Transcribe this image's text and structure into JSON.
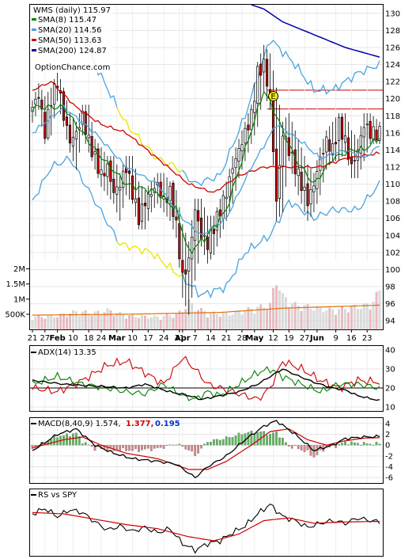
{
  "legend": {
    "title": "WMS (daily) 115.97",
    "items": [
      {
        "label": "SMA(8) 115.47",
        "color": "#008000"
      },
      {
        "label": "SMA(20) 114.56",
        "color": "#4aa3df"
      },
      {
        "label": "SMA(50) 113.63",
        "color": "#cc0000"
      },
      {
        "label": "SMA(200) 124.87",
        "color": "#0000aa"
      }
    ],
    "brand": "OptionChance.com"
  },
  "colors": {
    "up": "#ffffff",
    "down": "#cc0000",
    "wick": "#000000",
    "bb": "#4aa3df",
    "bb_yellow": "#e6e600",
    "vol": "#f2b5be",
    "vol_up": "#dddddd",
    "vol_avg": "#e07000",
    "adx": "#000000",
    "di_plus": "#008000",
    "di_minus": "#cc0000",
    "macd": "#000000",
    "signal": "#cc0000",
    "hist_up": "#5cb85c",
    "hist_down": "#d98888",
    "rs": "#000000",
    "rs_ma": "#cc0000"
  },
  "x_labels": [
    {
      "text": "21",
      "i": 0,
      "bold": false
    },
    {
      "text": "27",
      "i": 4,
      "bold": false
    },
    {
      "text": "Feb",
      "i": 8,
      "bold": true
    },
    {
      "text": "10",
      "i": 13,
      "bold": false
    },
    {
      "text": "18",
      "i": 18,
      "bold": false
    },
    {
      "text": "24",
      "i": 22,
      "bold": false
    },
    {
      "text": "Mar",
      "i": 27,
      "bold": true
    },
    {
      "text": "10",
      "i": 32,
      "bold": false
    },
    {
      "text": "17",
      "i": 37,
      "bold": false
    },
    {
      "text": "24",
      "i": 42,
      "bold": false
    },
    {
      "text": "31",
      "i": 47,
      "bold": false
    },
    {
      "text": "Apr",
      "i": 48,
      "bold": true
    },
    {
      "text": "7",
      "i": 52,
      "bold": false
    },
    {
      "text": "14",
      "i": 57,
      "bold": false
    },
    {
      "text": "21",
      "i": 62,
      "bold": false
    },
    {
      "text": "28",
      "i": 67,
      "bold": false
    },
    {
      "text": "May",
      "i": 71,
      "bold": true
    },
    {
      "text": "12",
      "i": 77,
      "bold": false
    },
    {
      "text": "19",
      "i": 82,
      "bold": false
    },
    {
      "text": "27",
      "i": 87,
      "bold": false
    },
    {
      "text": "Jun",
      "i": 91,
      "bold": true
    },
    {
      "text": "9",
      "i": 97,
      "bold": false
    },
    {
      "text": "16",
      "i": 102,
      "bold": false
    },
    {
      "text": "23",
      "i": 107,
      "bold": false
    }
  ],
  "panels": {
    "price": {
      "ticks": [
        94,
        96,
        98,
        100,
        102,
        104,
        106,
        108,
        110,
        112,
        114,
        116,
        118,
        120,
        122,
        124,
        126,
        128,
        130
      ],
      "ylim": [
        93,
        131
      ],
      "earnings_marker": "E"
    },
    "volume": {
      "ticks": [
        "2M",
        "1.5M",
        "1M",
        "500K"
      ],
      "tick_values": [
        2000000,
        1500000,
        1000000,
        500000
      ],
      "ylim": [
        0,
        2250000
      ]
    },
    "adx": {
      "title": "ADX(14) 13.35",
      "ticks": [
        40,
        30,
        20,
        10
      ],
      "ylim": [
        8,
        42
      ],
      "ref": 20
    },
    "macd": {
      "title": "MACD(8,40,9) 1.574,",
      "v1": "1.377,",
      "v2": "0.195",
      "ticks": [
        4,
        2,
        0,
        -2,
        -4,
        -6
      ],
      "ylim": [
        -7,
        5
      ],
      "v1_color": "#cc0000",
      "v2_color": "#0033cc"
    },
    "rs": {
      "title": "RS vs SPY"
    }
  },
  "chart_data": {
    "type": "candlestick",
    "title": "WMS (daily) 115.97",
    "n_sessions": 112,
    "ohlc_anchors": [
      [
        0,
        118,
        119.5,
        117.5,
        119
      ],
      [
        2,
        120,
        121.5,
        119,
        120.5
      ],
      [
        4,
        119,
        120,
        115,
        116
      ],
      [
        6,
        117,
        121,
        116,
        120
      ],
      [
        8,
        121,
        123,
        120,
        122
      ],
      [
        10,
        120,
        121,
        117,
        118
      ],
      [
        12,
        117,
        118,
        114,
        115
      ],
      [
        14,
        114,
        117,
        112,
        116
      ],
      [
        16,
        117,
        119,
        116,
        118
      ],
      [
        18,
        118,
        119,
        114,
        115
      ],
      [
        20,
        114,
        115,
        112,
        113
      ],
      [
        22,
        113,
        114,
        110,
        111
      ],
      [
        24,
        111,
        113,
        109,
        112
      ],
      [
        26,
        112,
        113,
        108,
        109
      ],
      [
        28,
        109,
        111,
        106,
        110
      ],
      [
        30,
        110,
        113,
        109,
        112
      ],
      [
        32,
        112,
        113,
        108,
        109
      ],
      [
        34,
        109,
        110,
        105,
        106
      ],
      [
        36,
        106,
        109,
        105,
        108
      ],
      [
        38,
        108,
        110,
        107,
        109
      ],
      [
        40,
        109,
        111,
        108,
        110
      ],
      [
        42,
        110,
        111,
        107,
        108
      ],
      [
        44,
        108,
        110,
        106,
        109
      ],
      [
        46,
        108,
        109,
        104,
        105
      ],
      [
        48,
        104,
        105,
        97,
        99
      ],
      [
        50,
        99,
        103,
        95,
        101
      ],
      [
        52,
        101,
        108,
        99,
        107
      ],
      [
        54,
        106,
        108,
        103,
        104
      ],
      [
        56,
        104,
        106,
        101,
        103
      ],
      [
        58,
        103,
        106,
        102,
        105
      ],
      [
        60,
        105,
        108,
        104,
        107
      ],
      [
        62,
        107,
        110,
        106,
        109
      ],
      [
        64,
        109,
        113,
        108,
        112
      ],
      [
        66,
        112,
        115,
        111,
        114
      ],
      [
        68,
        114,
        117,
        113,
        116
      ],
      [
        70,
        116,
        119,
        115,
        118
      ],
      [
        72,
        118,
        124,
        117,
        123
      ],
      [
        74,
        123,
        126,
        121,
        124
      ],
      [
        76,
        124,
        125,
        119,
        120
      ],
      [
        78,
        120,
        121,
        106,
        108
      ],
      [
        80,
        108,
        117,
        107,
        116
      ],
      [
        82,
        116,
        118,
        113,
        114
      ],
      [
        84,
        114,
        116,
        110,
        112
      ],
      [
        86,
        112,
        114,
        108,
        110
      ],
      [
        88,
        110,
        112,
        106,
        108
      ],
      [
        90,
        108,
        111,
        107,
        110
      ],
      [
        92,
        110,
        114,
        109,
        113
      ],
      [
        94,
        113,
        116,
        112,
        115
      ],
      [
        96,
        115,
        117,
        113,
        114
      ],
      [
        98,
        114,
        118,
        113,
        117
      ],
      [
        100,
        117,
        118,
        114,
        115
      ],
      [
        102,
        115,
        116,
        111,
        112
      ],
      [
        104,
        112,
        115,
        111,
        114
      ],
      [
        106,
        114,
        118,
        113,
        117
      ],
      [
        108,
        117,
        118,
        115,
        116
      ],
      [
        111,
        116,
        117,
        115,
        115.97
      ]
    ],
    "sma8_anchors": [
      [
        0,
        119
      ],
      [
        10,
        119
      ],
      [
        20,
        114
      ],
      [
        30,
        110
      ],
      [
        40,
        109
      ],
      [
        46,
        107
      ],
      [
        50,
        102
      ],
      [
        56,
        104
      ],
      [
        62,
        107
      ],
      [
        68,
        114
      ],
      [
        74,
        121
      ],
      [
        78,
        118
      ],
      [
        84,
        113
      ],
      [
        90,
        110
      ],
      [
        96,
        113
      ],
      [
        102,
        114
      ],
      [
        106,
        114
      ],
      [
        111,
        115.47
      ]
    ],
    "sma20_anchors": [
      [
        0,
        116
      ],
      [
        10,
        119
      ],
      [
        20,
        116
      ],
      [
        30,
        112
      ],
      [
        40,
        110
      ],
      [
        48,
        106
      ],
      [
        54,
        104
      ],
      [
        62,
        106
      ],
      [
        70,
        112
      ],
      [
        78,
        117
      ],
      [
        86,
        115
      ],
      [
        92,
        113
      ],
      [
        100,
        114
      ],
      [
        106,
        113
      ],
      [
        111,
        114.56
      ]
    ],
    "sma50_anchors": [
      [
        0,
        121
      ],
      [
        6,
        122
      ],
      [
        14,
        119
      ],
      [
        22,
        117
      ],
      [
        30,
        116
      ],
      [
        40,
        113
      ],
      [
        50,
        110
      ],
      [
        58,
        109
      ],
      [
        66,
        111
      ],
      [
        74,
        112
      ],
      [
        82,
        112
      ],
      [
        92,
        112
      ],
      [
        100,
        113
      ],
      [
        111,
        113.63
      ]
    ],
    "sma200_anchors": [
      [
        70,
        131
      ],
      [
        74,
        130.5
      ],
      [
        80,
        129
      ],
      [
        90,
        127.5
      ],
      [
        100,
        126
      ],
      [
        111,
        124.87
      ]
    ],
    "bb_upper_anchors": [
      [
        0,
        126
      ],
      [
        8,
        128
      ],
      [
        16,
        128
      ],
      [
        20,
        124
      ],
      [
        30,
        117
      ],
      [
        40,
        113
      ],
      [
        46,
        112
      ],
      [
        52,
        110
      ],
      [
        60,
        111
      ],
      [
        68,
        118
      ],
      [
        76,
        127
      ],
      [
        84,
        124
      ],
      [
        90,
        121
      ],
      [
        96,
        121
      ],
      [
        104,
        123
      ],
      [
        111,
        124
      ]
    ],
    "bb_lower_anchors": [
      [
        0,
        108
      ],
      [
        6,
        112
      ],
      [
        12,
        113
      ],
      [
        20,
        108
      ],
      [
        28,
        103
      ],
      [
        38,
        102
      ],
      [
        48,
        99
      ],
      [
        54,
        97
      ],
      [
        62,
        98
      ],
      [
        68,
        102
      ],
      [
        76,
        104
      ],
      [
        82,
        108
      ],
      [
        90,
        106
      ],
      [
        96,
        107
      ],
      [
        104,
        107
      ],
      [
        111,
        110
      ]
    ],
    "bb_yellow_ranges": [
      [
        27,
        48
      ]
    ],
    "resistance_lines": [
      121,
      118.8
    ],
    "earnings_index": 77,
    "volume_anchors": [
      [
        0,
        450000
      ],
      [
        8,
        500000
      ],
      [
        14,
        650000
      ],
      [
        20,
        600000
      ],
      [
        24,
        700000
      ],
      [
        30,
        500000
      ],
      [
        40,
        450000
      ],
      [
        46,
        550000
      ],
      [
        48,
        700000
      ],
      [
        50,
        1000000
      ],
      [
        52,
        800000
      ],
      [
        56,
        600000
      ],
      [
        62,
        550000
      ],
      [
        66,
        650000
      ],
      [
        72,
        800000
      ],
      [
        76,
        900000
      ],
      [
        78,
        1900000
      ],
      [
        80,
        1200000
      ],
      [
        84,
        900000
      ],
      [
        90,
        800000
      ],
      [
        96,
        700000
      ],
      [
        102,
        800000
      ],
      [
        108,
        900000
      ],
      [
        111,
        1400000
      ]
    ],
    "volume_avg": [
      [
        0,
        470000
      ],
      [
        30,
        500000
      ],
      [
        60,
        560000
      ],
      [
        80,
        700000
      ],
      [
        111,
        800000
      ]
    ],
    "adx_anchors": [
      [
        0,
        24
      ],
      [
        10,
        22
      ],
      [
        20,
        21
      ],
      [
        30,
        20
      ],
      [
        36,
        22
      ],
      [
        44,
        18
      ],
      [
        50,
        16
      ],
      [
        54,
        14
      ],
      [
        60,
        16
      ],
      [
        66,
        18
      ],
      [
        72,
        22
      ],
      [
        76,
        26
      ],
      [
        80,
        30
      ],
      [
        84,
        27
      ],
      [
        90,
        23
      ],
      [
        96,
        20
      ],
      [
        100,
        19
      ],
      [
        104,
        16
      ],
      [
        111,
        13.35
      ]
    ],
    "di_plus_anchors": [
      [
        0,
        22
      ],
      [
        8,
        26
      ],
      [
        16,
        22
      ],
      [
        24,
        20
      ],
      [
        30,
        18
      ],
      [
        36,
        17
      ],
      [
        42,
        22
      ],
      [
        48,
        16
      ],
      [
        52,
        14
      ],
      [
        56,
        18
      ],
      [
        60,
        16
      ],
      [
        66,
        22
      ],
      [
        72,
        28
      ],
      [
        76,
        30
      ],
      [
        80,
        26
      ],
      [
        86,
        22
      ],
      [
        92,
        18
      ],
      [
        98,
        22
      ],
      [
        104,
        22
      ],
      [
        111,
        20
      ]
    ],
    "di_minus_anchors": [
      [
        0,
        20
      ],
      [
        8,
        18
      ],
      [
        16,
        24
      ],
      [
        24,
        32
      ],
      [
        30,
        34
      ],
      [
        36,
        28
      ],
      [
        42,
        22
      ],
      [
        48,
        36
      ],
      [
        52,
        30
      ],
      [
        56,
        22
      ],
      [
        60,
        20
      ],
      [
        66,
        17
      ],
      [
        72,
        14
      ],
      [
        76,
        20
      ],
      [
        80,
        34
      ],
      [
        86,
        30
      ],
      [
        92,
        24
      ],
      [
        98,
        20
      ],
      [
        104,
        24
      ],
      [
        111,
        23
      ]
    ],
    "macd_anchors": [
      [
        0,
        -1
      ],
      [
        8,
        2
      ],
      [
        14,
        3
      ],
      [
        20,
        0
      ],
      [
        26,
        -1.5
      ],
      [
        32,
        -2.5
      ],
      [
        40,
        -3
      ],
      [
        46,
        -3.5
      ],
      [
        52,
        -6
      ],
      [
        56,
        -4
      ],
      [
        62,
        -2
      ],
      [
        68,
        1
      ],
      [
        74,
        3.5
      ],
      [
        78,
        4.5
      ],
      [
        84,
        2
      ],
      [
        90,
        -1
      ],
      [
        96,
        0
      ],
      [
        100,
        1.2
      ],
      [
        106,
        1.5
      ],
      [
        111,
        1.574
      ]
    ],
    "signal_anchors": [
      [
        0,
        -0.5
      ],
      [
        10,
        1
      ],
      [
        16,
        1.5
      ],
      [
        22,
        0
      ],
      [
        30,
        -1.5
      ],
      [
        40,
        -2.5
      ],
      [
        50,
        -4.5
      ],
      [
        56,
        -4.5
      ],
      [
        62,
        -3
      ],
      [
        70,
        0
      ],
      [
        76,
        2.5
      ],
      [
        82,
        3
      ],
      [
        88,
        1
      ],
      [
        94,
        0
      ],
      [
        100,
        0.8
      ],
      [
        106,
        1.3
      ],
      [
        111,
        1.377
      ]
    ],
    "rs_anchors": [
      [
        0,
        0.4
      ],
      [
        4,
        0.6
      ],
      [
        8,
        0.3
      ],
      [
        12,
        0.55
      ],
      [
        16,
        0.45
      ],
      [
        20,
        0.1
      ],
      [
        24,
        -0.2
      ],
      [
        28,
        -0.05
      ],
      [
        32,
        -0.25
      ],
      [
        36,
        -0.1
      ],
      [
        40,
        -0.3
      ],
      [
        44,
        -0.15
      ],
      [
        48,
        -0.7
      ],
      [
        52,
        -0.95
      ],
      [
        56,
        -0.7
      ],
      [
        60,
        -0.6
      ],
      [
        64,
        -0.3
      ],
      [
        68,
        -0.05
      ],
      [
        72,
        0.4
      ],
      [
        76,
        0.75
      ],
      [
        80,
        0.3
      ],
      [
        84,
        0.15
      ],
      [
        88,
        -0.1
      ],
      [
        92,
        0.05
      ],
      [
        96,
        0.15
      ],
      [
        100,
        0.05
      ],
      [
        104,
        0.25
      ],
      [
        108,
        0.15
      ],
      [
        111,
        0.1
      ]
    ],
    "rs_ma_anchors": [
      [
        0,
        0.45
      ],
      [
        10,
        0.4
      ],
      [
        20,
        0.2
      ],
      [
        30,
        0
      ],
      [
        40,
        -0.15
      ],
      [
        50,
        -0.45
      ],
      [
        58,
        -0.6
      ],
      [
        66,
        -0.35
      ],
      [
        74,
        0.15
      ],
      [
        82,
        0.25
      ],
      [
        90,
        0.05
      ],
      [
        100,
        0.1
      ],
      [
        111,
        0.12
      ]
    ]
  }
}
